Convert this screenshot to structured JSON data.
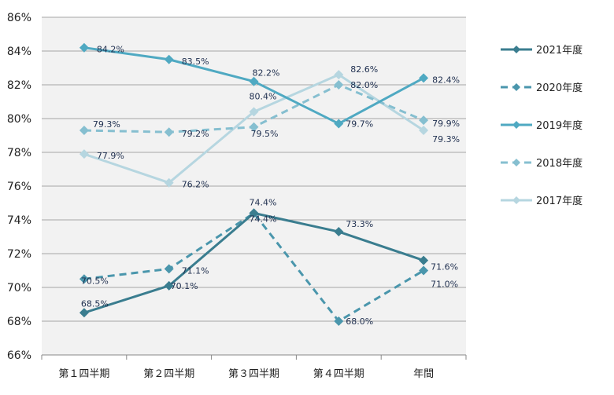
{
  "chart_data": {
    "type": "line",
    "categories": [
      "第１四半期",
      "第２四半期",
      "第３四半期",
      "第４四半期",
      "年間"
    ],
    "ylim": [
      66,
      86
    ],
    "ytick_step": 2,
    "ytick_labels": [
      "66%",
      "68%",
      "70%",
      "72%",
      "74%",
      "76%",
      "78%",
      "80%",
      "82%",
      "84%",
      "86%"
    ],
    "grid": true,
    "legend_position": "right",
    "series": [
      {
        "name": "2021年度",
        "values": [
          68.5,
          70.1,
          74.4,
          73.3,
          71.6
        ],
        "labels": [
          "68.5%",
          "70.1%",
          "74.4%",
          "73.3%",
          "71.6%"
        ],
        "color": "#3a7d8f",
        "dashed": false
      },
      {
        "name": "2020年度",
        "values": [
          70.5,
          71.1,
          74.4,
          68.0,
          71.0
        ],
        "labels": [
          "70.5%",
          "71.1%",
          "74.4%",
          "68.0%",
          "71.0%"
        ],
        "color": "#4a96ac",
        "dashed": true
      },
      {
        "name": "2019年度",
        "values": [
          84.2,
          83.5,
          82.2,
          79.7,
          82.4
        ],
        "labels": [
          "84.2%",
          "83.5%",
          "82.2%",
          "79.7%",
          "82.4%"
        ],
        "color": "#4fa9c2",
        "dashed": false
      },
      {
        "name": "2018年度",
        "values": [
          79.3,
          79.2,
          79.5,
          82.0,
          79.9
        ],
        "labels": [
          "79.3%",
          "79.2%",
          "79.5%",
          "82.0%",
          "79.9%"
        ],
        "color": "#86bfd0",
        "dashed": true
      },
      {
        "name": "2017年度",
        "values": [
          77.9,
          76.2,
          80.4,
          82.6,
          79.3
        ],
        "labels": [
          "77.9%",
          "76.2%",
          "80.4%",
          "82.6%",
          "79.3%"
        ],
        "color": "#b6d6e0",
        "dashed": false
      }
    ]
  }
}
